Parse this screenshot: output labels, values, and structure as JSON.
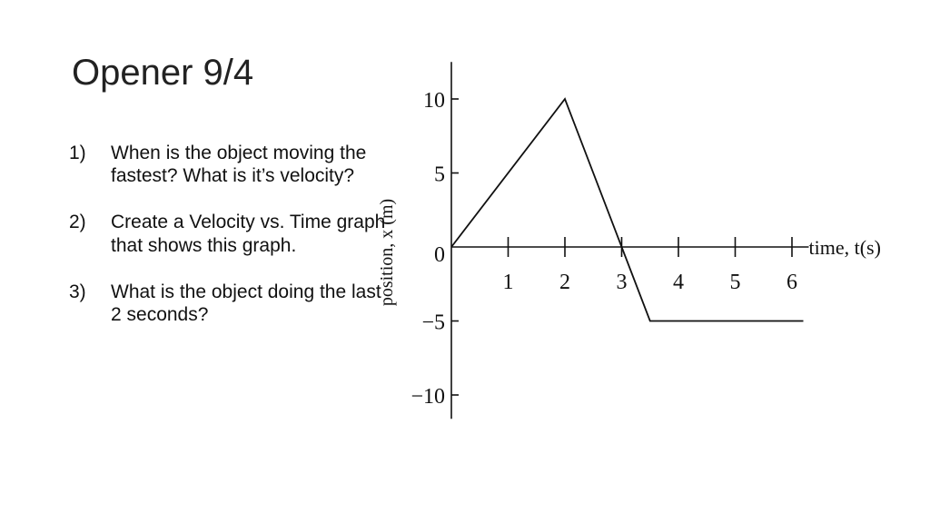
{
  "slide": {
    "title": "Opener 9/4"
  },
  "questions": [
    {
      "number": "1)",
      "text": "When is the object moving the fastest? What is it’s velocity?"
    },
    {
      "number": "2)",
      "text": "Create a Velocity vs. Time graph that shows this graph."
    },
    {
      "number": "3)",
      "text": "What is the object doing the last 2 seconds?"
    }
  ],
  "chart_data": {
    "type": "line",
    "title": "",
    "xlabel": "time, t(s)",
    "ylabel": "position, x (m)",
    "xlim": [
      0,
      6.2
    ],
    "ylim": [
      -11,
      12.5
    ],
    "x_ticks": [
      1,
      2,
      3,
      4,
      5,
      6
    ],
    "x_tick_labels": [
      "1",
      "2",
      "3",
      "4",
      "5",
      "6"
    ],
    "y_ticks": [
      10,
      5,
      0,
      -5,
      -10
    ],
    "y_tick_labels": [
      "10",
      "5",
      "0",
      "−5",
      "−10"
    ],
    "grid": false,
    "series": [
      {
        "x": [
          0,
          2,
          3,
          3.5,
          6.2
        ],
        "y": [
          0,
          10,
          0,
          -5,
          -5
        ]
      }
    ],
    "line_color": "#111111"
  }
}
